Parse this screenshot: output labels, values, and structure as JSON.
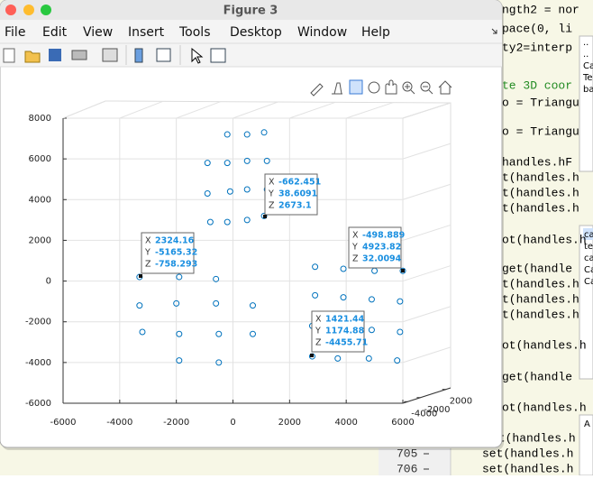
{
  "window": {
    "title": "Figure 3",
    "menu": [
      "File",
      "Edit",
      "View",
      "Insert",
      "Tools",
      "Desktop",
      "Window",
      "Help"
    ]
  },
  "chart_data": {
    "type": "scatter",
    "color": "#0072bd",
    "xlim": [
      -6000,
      6000
    ],
    "ylim": [
      -6000,
      8000
    ],
    "xticks": [
      -6000,
      -4000,
      -2000,
      0,
      2000,
      4000,
      6000
    ],
    "yticks": [
      8000,
      6000,
      4000,
      2000,
      0,
      -2000,
      -4000,
      -6000
    ],
    "zticks": [
      -4000,
      -2000,
      2000
    ],
    "grid": true,
    "x": [
      -200,
      500,
      1100,
      -900,
      -200,
      500,
      1200,
      -900,
      -100,
      500,
      1200,
      -800,
      -200,
      500,
      1100,
      -3300,
      -1900,
      -600,
      -3300,
      -2000,
      -600,
      700,
      -3200,
      -1900,
      -500,
      700,
      -1900,
      -500,
      2900,
      3900,
      5000,
      6000,
      2900,
      3900,
      4900,
      5900,
      2800,
      3800,
      4900,
      5900,
      2800,
      3700,
      4800,
      5800
    ],
    "y": [
      7200,
      7200,
      7300,
      5800,
      5800,
      5900,
      5900,
      4300,
      4400,
      4500,
      4500,
      2900,
      2900,
      3000,
      3200,
      200,
      200,
      100,
      -1200,
      -1100,
      -1100,
      -1200,
      -2500,
      -2600,
      -2600,
      -2600,
      -3900,
      -4000,
      700,
      600,
      500,
      500,
      -700,
      -800,
      -900,
      -1000,
      -2200,
      -2300,
      -2400,
      -2500,
      -3700,
      -3800,
      -3800,
      -3900
    ],
    "datatips": [
      {
        "labels": [
          "X",
          "Y",
          "Z"
        ],
        "values": [
          -662.451,
          38.6091,
          2673.1
        ]
      },
      {
        "labels": [
          "X",
          "Y",
          "Z"
        ],
        "values": [
          2324.16,
          -5165.32,
          -758.293
        ]
      },
      {
        "labels": [
          "X",
          "Y",
          "Z"
        ],
        "values": [
          -498.889,
          4923.82,
          32.0094
        ]
      },
      {
        "labels": [
          "X",
          "Y",
          "Z"
        ],
        "values": [
          1421.44,
          1174.88,
          -4455.71
        ]
      }
    ]
  },
  "editor": {
    "lines": [
      "ngth2 = nor",
      "pace(0, li",
      "ty2=interp",
      "te 3D coor",
      "o = Triangu",
      "o = Triangu",
      "handles.hF",
      "t(handles.h",
      "t(handles.h",
      "t(handles.h",
      "ot(handles.h",
      "get(handle",
      "t(handles.h",
      "t(handles.h",
      "t(handles.h",
      "ot(handles.h",
      "get(handle",
      "ot(handles.h",
      "et(handles.h",
      "set(handles.h",
      "set(handles.h"
    ],
    "line_numbers": [
      "705",
      "706"
    ],
    "panel_top": [
      "..",
      "..",
      "Ca",
      "Te",
      "ba"
    ],
    "panel_bottom": [
      "ca",
      "te",
      "ca",
      "Ca",
      "Ca"
    ],
    "corner": "A"
  }
}
